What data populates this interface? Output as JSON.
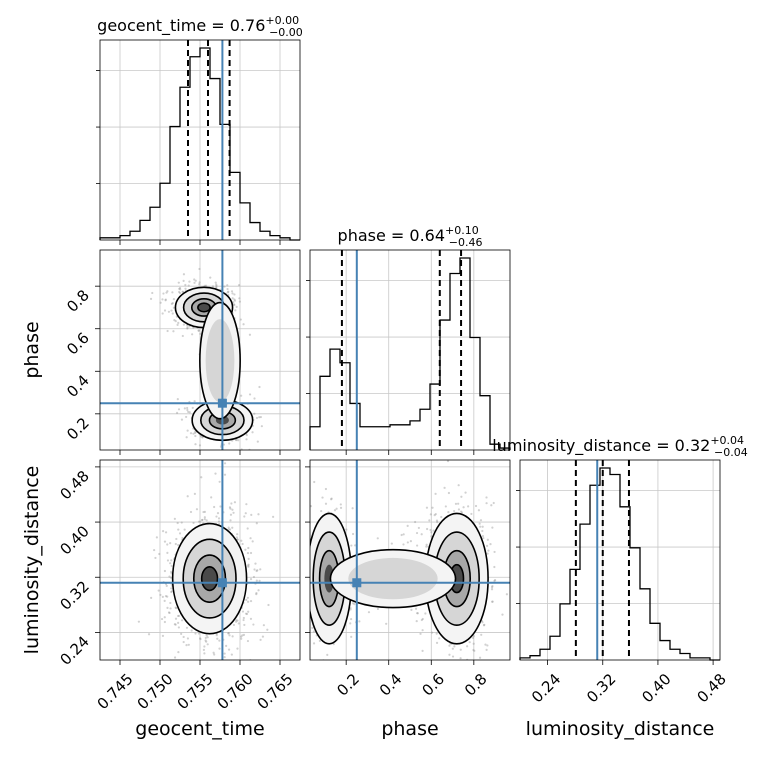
{
  "chart_data": {
    "type": "corner",
    "parameters": [
      "geocent_time",
      "phase",
      "luminosity_distance"
    ],
    "titles": [
      {
        "name": "geocent_time",
        "value": "0.76",
        "plus": "+0.00",
        "minus": "−0.00"
      },
      {
        "name": "phase",
        "value": "0.64",
        "plus": "+0.10",
        "minus": "−0.46"
      },
      {
        "name": "luminosity_distance",
        "value": "0.32",
        "plus": "+0.04",
        "minus": "−0.04"
      }
    ],
    "ranges": {
      "geocent_time": [
        0.7425,
        0.7675
      ],
      "phase": [
        0.03,
        0.97
      ],
      "luminosity_distance": [
        0.2,
        0.49
      ]
    },
    "tick_labels": {
      "geocent_time": [
        "0.745",
        "0.750",
        "0.755",
        "0.760",
        "0.765"
      ],
      "phase": [
        "0.2",
        "0.4",
        "0.6",
        "0.8"
      ],
      "luminosity_distance": [
        "0.24",
        "0.32",
        "0.40",
        "0.48"
      ]
    },
    "truth_values": {
      "geocent_time": 0.7578,
      "phase": 0.25,
      "luminosity_distance": 0.312
    },
    "quantiles": {
      "geocent_time": [
        0.7535,
        0.756,
        0.7587
      ],
      "phase": [
        0.18,
        0.64,
        0.74
      ],
      "luminosity_distance": [
        0.281,
        0.32,
        0.358
      ]
    },
    "histograms": {
      "geocent_time": {
        "edges_range": [
          0.7425,
          0.7675
        ],
        "counts": [
          1,
          1,
          2,
          4,
          9,
          15,
          26,
          52,
          70,
          84,
          88,
          74,
          53,
          31,
          17,
          8,
          4,
          2,
          1,
          0
        ]
      },
      "phase": {
        "edges_range": [
          0.03,
          0.97
        ],
        "counts": [
          12,
          38,
          52,
          45,
          24,
          12,
          12,
          12,
          13,
          13,
          15,
          21,
          34,
          67,
          91,
          99,
          58,
          28,
          3,
          1
        ]
      },
      "luminosity_distance": {
        "edges_range": [
          0.2,
          0.49
        ],
        "counts": [
          1,
          2,
          5,
          11,
          26,
          42,
          63,
          81,
          89,
          86,
          71,
          52,
          33,
          17,
          9,
          5,
          3,
          1,
          1,
          0
        ]
      }
    },
    "grid": true
  }
}
